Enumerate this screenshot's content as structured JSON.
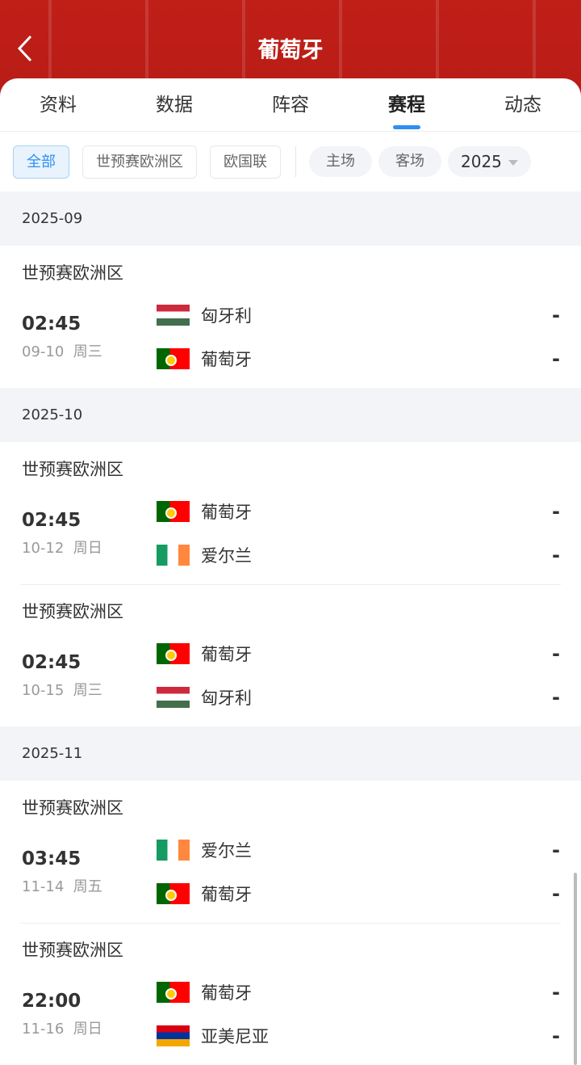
{
  "header": {
    "title": "葡萄牙"
  },
  "tabs": [
    "资料",
    "数据",
    "阵容",
    "赛程",
    "动态"
  ],
  "active_tab": "赛程",
  "filters": {
    "competitions": [
      "全部",
      "世预赛欧洲区",
      "欧国联"
    ],
    "venue": [
      "主场",
      "客场"
    ],
    "year": "2025"
  },
  "colors": {
    "header": "#c01f18",
    "accent": "#2f8ff0"
  },
  "months": [
    {
      "label": "2025-09",
      "matches": [
        {
          "league": "世预赛欧洲区",
          "time": "02:45",
          "date": "09-10",
          "weekday": "周三",
          "home": {
            "name": "匈牙利",
            "flag": "hungary"
          },
          "away": {
            "name": "葡萄牙",
            "flag": "portugal"
          },
          "home_score": "-",
          "away_score": "-"
        }
      ]
    },
    {
      "label": "2025-10",
      "matches": [
        {
          "league": "世预赛欧洲区",
          "time": "02:45",
          "date": "10-12",
          "weekday": "周日",
          "home": {
            "name": "葡萄牙",
            "flag": "portugal"
          },
          "away": {
            "name": "爱尔兰",
            "flag": "ireland"
          },
          "home_score": "-",
          "away_score": "-"
        },
        {
          "league": "世预赛欧洲区",
          "time": "02:45",
          "date": "10-15",
          "weekday": "周三",
          "home": {
            "name": "葡萄牙",
            "flag": "portugal"
          },
          "away": {
            "name": "匈牙利",
            "flag": "hungary"
          },
          "home_score": "-",
          "away_score": "-"
        }
      ]
    },
    {
      "label": "2025-11",
      "matches": [
        {
          "league": "世预赛欧洲区",
          "time": "03:45",
          "date": "11-14",
          "weekday": "周五",
          "home": {
            "name": "爱尔兰",
            "flag": "ireland"
          },
          "away": {
            "name": "葡萄牙",
            "flag": "portugal"
          },
          "home_score": "-",
          "away_score": "-"
        },
        {
          "league": "世预赛欧洲区",
          "time": "22:00",
          "date": "11-16",
          "weekday": "周日",
          "home": {
            "name": "葡萄牙",
            "flag": "portugal"
          },
          "away": {
            "name": "亚美尼亚",
            "flag": "armenia"
          },
          "home_score": "-",
          "away_score": "-"
        }
      ]
    }
  ]
}
